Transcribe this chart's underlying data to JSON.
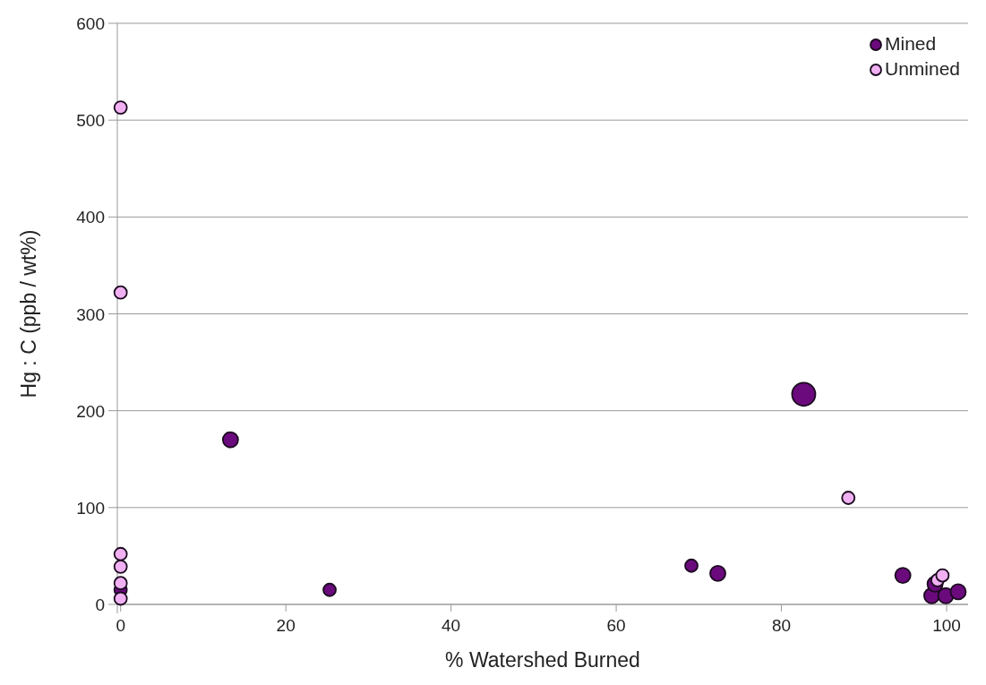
{
  "chart_data": {
    "type": "bubble",
    "xlabel": "% Watershed Burned",
    "ylabel": "Hg : C (ppb / wt%)",
    "xlim": [
      -0.4,
      102.6
    ],
    "ylim": [
      0,
      600
    ],
    "xticks": [
      0,
      20,
      40,
      60,
      80,
      100
    ],
    "yticks": [
      0,
      100,
      200,
      300,
      400,
      500,
      600
    ],
    "grid": "y",
    "legend": "top right",
    "marker": "circle",
    "series": [
      {
        "name": "Mined",
        "color": "#6b0a7d",
        "x": [
          0,
          13.3,
          25.3,
          69.1,
          72.3,
          82.7,
          94.7,
          98.2,
          98.6,
          99.9,
          101.4
        ],
        "values": [
          15,
          170,
          15,
          40,
          32,
          217,
          30,
          9,
          21,
          9,
          13
        ],
        "sizes": [
          0.29,
          0.43,
          0.29,
          0.29,
          0.43,
          1,
          0.43,
          0.43,
          0.43,
          0.43,
          0.43
        ]
      },
      {
        "name": "Unmined",
        "color": "#f0b0f2",
        "x": [
          0,
          0,
          0,
          0,
          0,
          0,
          88.1,
          98.9,
          99.5
        ],
        "values": [
          513,
          322,
          52,
          39,
          22,
          6,
          110,
          25,
          30
        ],
        "sizes": [
          0.29,
          0.29,
          0.29,
          0.29,
          0.29,
          0.29,
          0.29,
          0.29,
          0.29
        ]
      }
    ]
  }
}
